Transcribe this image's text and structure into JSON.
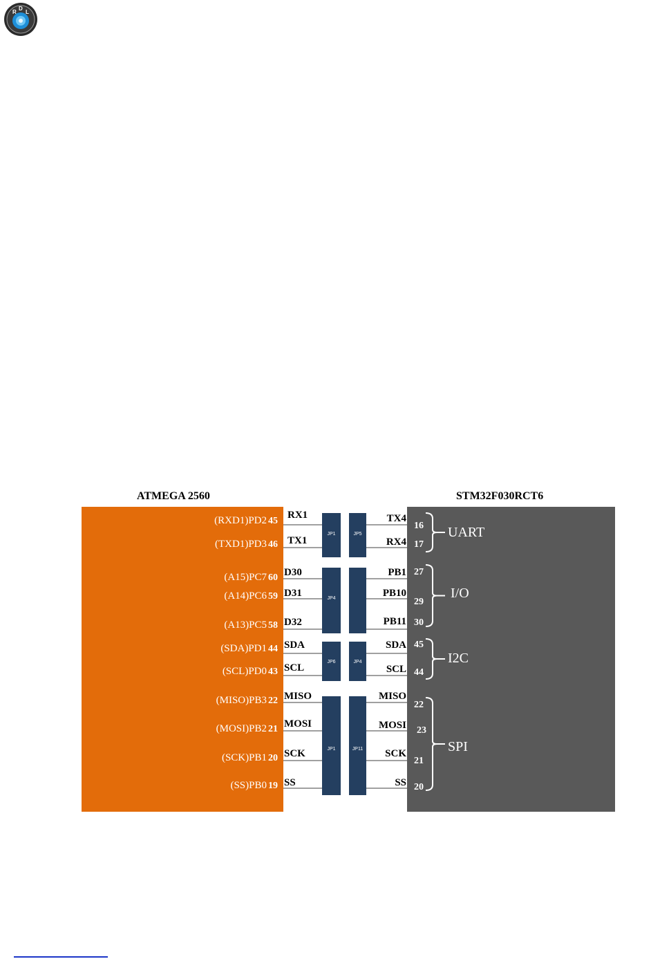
{
  "logo": {
    "letters": [
      "R",
      "D",
      "L"
    ]
  },
  "left_chip": {
    "title": "ATMEGA  2560",
    "color": "#e36c0a",
    "pins": [
      {
        "func": "(RXD1)PD2",
        "num": "45"
      },
      {
        "func": "(TXD1)PD3",
        "num": "46"
      },
      {
        "func": "(A15)PC7",
        "num": "60"
      },
      {
        "func": "(A14)PC6",
        "num": "59"
      },
      {
        "func": "(A13)PC5",
        "num": "58"
      },
      {
        "func": "(SDA)PD1",
        "num": "44"
      },
      {
        "func": "(SCL)PD0",
        "num": "43"
      },
      {
        "func": "(MISO)PB3",
        "num": "22"
      },
      {
        "func": "(MOSI)PB2",
        "num": "21"
      },
      {
        "func": "(SCK)PB1",
        "num": "20"
      },
      {
        "func": "(SS)PB0",
        "num": "19"
      }
    ]
  },
  "right_chip": {
    "title": "STM32F030RCT6",
    "color": "#595959",
    "pins": [
      {
        "sig": "TX4",
        "num": "16"
      },
      {
        "sig": "RX4",
        "num": "17"
      },
      {
        "sig": "PB1",
        "num": "27"
      },
      {
        "sig": "PB10",
        "num": "29"
      },
      {
        "sig": "PB11",
        "num": "30"
      },
      {
        "sig": "SDA",
        "num": "45"
      },
      {
        "sig": "SCL",
        "num": "44"
      },
      {
        "sig": "MISO",
        "num": "22"
      },
      {
        "sig": "MOSI",
        "num": "23"
      },
      {
        "sig": "SCK",
        "num": "21"
      },
      {
        "sig": "SS",
        "num": "20"
      }
    ],
    "groups": [
      "UART",
      "I/O",
      "I2C",
      "SPI"
    ]
  },
  "left_signals": [
    "RX1",
    "TX1",
    "D30",
    "D31",
    "D32",
    "SDA",
    "SCL",
    "MISO",
    "MOSI",
    "SCK",
    "SS"
  ],
  "jumpers": {
    "color": "#243f60",
    "left": [
      "JP1",
      "JP4",
      "JP6",
      "JP1"
    ],
    "right": [
      "JP5",
      "",
      "JP4",
      "JP11"
    ]
  }
}
